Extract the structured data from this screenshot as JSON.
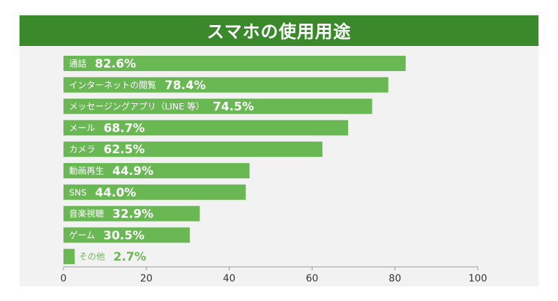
{
  "chart_data": {
    "type": "bar",
    "orientation": "horizontal",
    "title": "スマホの使用用途",
    "categories": [
      "通話",
      "インターネットの閲覧",
      "メッセージングアプリ（LINE 等）",
      "メール",
      "カメラ",
      "動画再生",
      "SNS",
      "音楽視聴",
      "ゲーム",
      "その他"
    ],
    "values": [
      82.6,
      78.4,
      74.5,
      68.7,
      62.5,
      44.9,
      44.0,
      32.9,
      30.5,
      2.7
    ],
    "value_labels": [
      "82.6%",
      "78.4%",
      "74.5%",
      "68.7%",
      "62.5%",
      "44.9%",
      "44.0%",
      "32.9%",
      "30.5%",
      "2.7%"
    ],
    "xlim": [
      0,
      100
    ],
    "xticks": [
      0,
      20,
      40,
      60,
      80,
      100
    ],
    "xlabel": "",
    "ylabel": "",
    "grid": false,
    "legend": "none",
    "colors": {
      "title_bar": "#3a8a2c",
      "bar": "#6ab854",
      "panel": "#f2f2f2",
      "title_text": "#ffffff"
    }
  }
}
